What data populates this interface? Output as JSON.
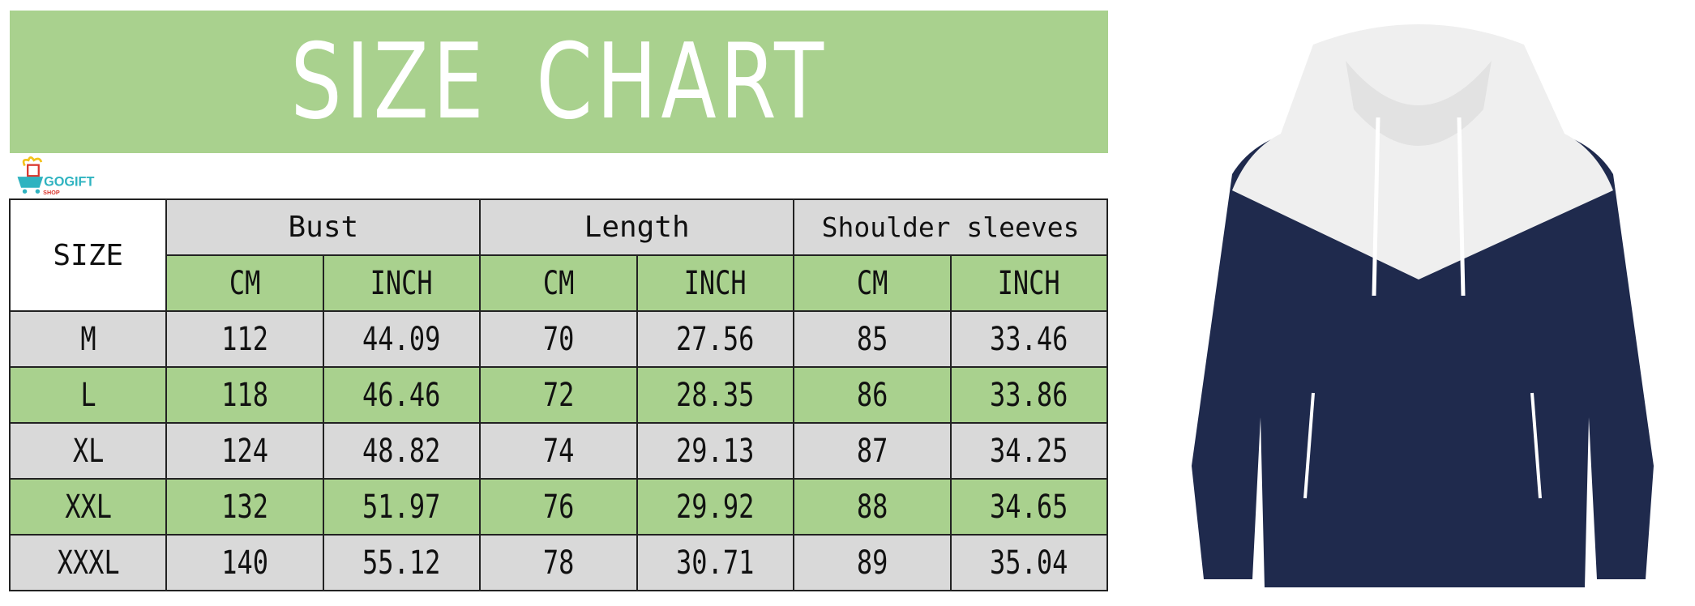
{
  "title": "SIZE CHART",
  "table": {
    "size_header": "SIZE",
    "groups": [
      "Bust",
      "Length",
      "Shoulder sleeves"
    ],
    "units": [
      "CM",
      "INCH",
      "CM",
      "INCH",
      "CM",
      "INCH"
    ],
    "rows": [
      {
        "size": "M",
        "values": [
          "112",
          "44.09",
          "70",
          "27.56",
          "85",
          "33.46"
        ]
      },
      {
        "size": "L",
        "values": [
          "118",
          "46.46",
          "72",
          "28.35",
          "86",
          "33.86"
        ]
      },
      {
        "size": "XL",
        "values": [
          "124",
          "48.82",
          "74",
          "29.13",
          "87",
          "34.25"
        ]
      },
      {
        "size": "XXL",
        "values": [
          "132",
          "51.97",
          "76",
          "29.92",
          "88",
          "34.65"
        ]
      },
      {
        "size": "XXXL",
        "values": [
          "140",
          "55.12",
          "78",
          "30.71",
          "89",
          "35.04"
        ]
      }
    ]
  },
  "watermark": {
    "brand": "GOGIFT",
    "sub": "SHOP"
  },
  "colors": {
    "green": "#a9d18e",
    "gray": "#d9d9d9",
    "navy": "#1f2a4d"
  }
}
